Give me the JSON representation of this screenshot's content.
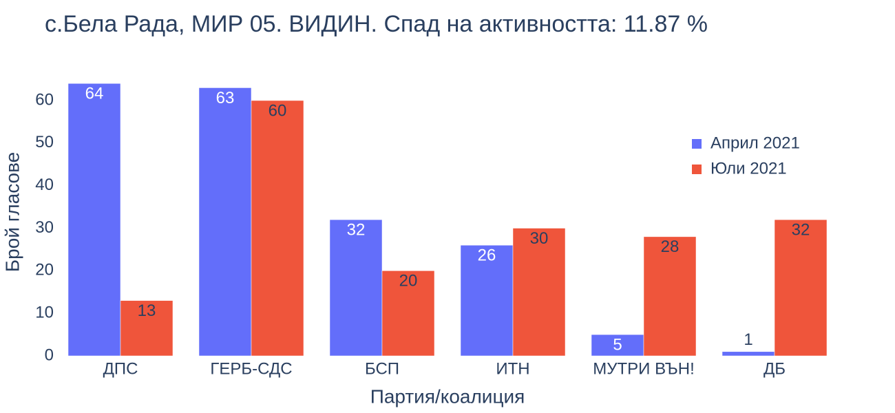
{
  "chart_data": {
    "type": "bar",
    "title": "с.Бела Рада, МИР 05. ВИДИН. Спад на активността: 11.87 %",
    "x_label": "Партия/коалиция",
    "y_label": "Брой гласове",
    "categories": [
      "ДПС",
      "ГЕРБ-СДС",
      "БСП",
      "ИТН",
      "МУТРИ ВЪН!",
      "ДБ"
    ],
    "series": [
      {
        "name": "Април 2021",
        "color": "#636efa",
        "values": [
          64,
          63,
          32,
          26,
          5,
          1
        ]
      },
      {
        "name": "Юли 2021",
        "color": "#ef553b",
        "values": [
          13,
          60,
          20,
          30,
          28,
          32
        ]
      }
    ],
    "ylim": [
      0,
      67
    ],
    "yticks": [
      0,
      10,
      20,
      30,
      40,
      50,
      60
    ],
    "grid": false,
    "legend": "top-right"
  }
}
